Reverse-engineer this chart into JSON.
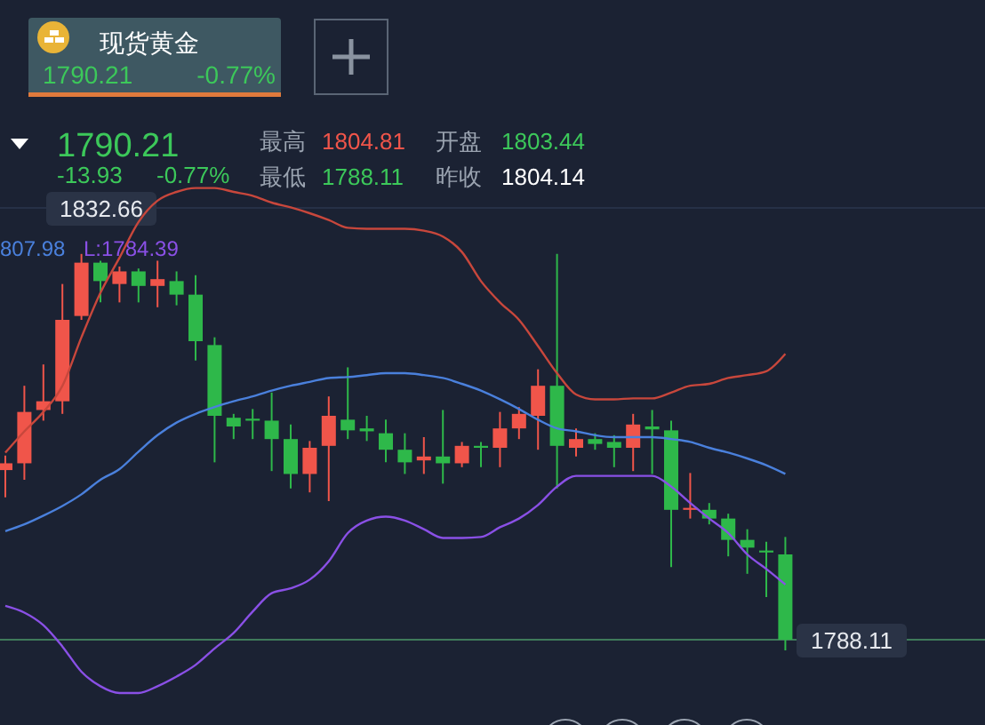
{
  "chart_data": {
    "type": "candlestick",
    "title": "现货黄金",
    "categories": [
      null,
      null,
      null,
      null,
      null,
      null,
      null,
      null,
      null,
      null,
      null,
      null,
      null,
      null,
      null,
      null,
      null,
      null,
      null,
      null,
      null,
      null,
      null,
      null,
      null,
      null,
      null,
      null,
      null,
      null,
      null,
      null,
      null,
      null,
      null,
      null,
      null,
      null,
      null,
      null,
      null,
      null
    ],
    "ohlc": [
      [
        1805.6,
        1807.1,
        1802.8,
        1806.3
      ],
      [
        1806.3,
        1814.3,
        1804.6,
        1811.6
      ],
      [
        1811.8,
        1816.5,
        1810.7,
        1812.7
      ],
      [
        1812.7,
        1824.8,
        1811.4,
        1821.1
      ],
      [
        1821.5,
        1827.9,
        1821.1,
        1827.0
      ],
      [
        1827.0,
        1827.2,
        1822.9,
        1825.1
      ],
      [
        1824.8,
        1826.6,
        1822.9,
        1826.1
      ],
      [
        1826.1,
        1826.4,
        1822.9,
        1824.6
      ],
      [
        1824.6,
        1827.2,
        1822.4,
        1825.3
      ],
      [
        1825.1,
        1826.1,
        1822.6,
        1823.7
      ],
      [
        1823.7,
        1825.7,
        1816.9,
        1818.9
      ],
      [
        1818.5,
        1819.3,
        1806.4,
        1811.2
      ],
      [
        1811.0,
        1811.4,
        1808.8,
        1810.1
      ],
      [
        1810.9,
        1811.9,
        1808.8,
        1810.7
      ],
      [
        1810.7,
        1813.6,
        1805.5,
        1808.8
      ],
      [
        1808.8,
        1810.3,
        1803.7,
        1805.2
      ],
      [
        1805.2,
        1808.6,
        1803.3,
        1807.9
      ],
      [
        1808.1,
        1813.2,
        1802.4,
        1811.2
      ],
      [
        1810.8,
        1816.2,
        1808.8,
        1809.7
      ],
      [
        1809.9,
        1811.2,
        1808.6,
        1809.6
      ],
      [
        1809.4,
        1810.8,
        1806.4,
        1807.7
      ],
      [
        1807.7,
        1809.4,
        1805.2,
        1806.4
      ],
      [
        1806.6,
        1809.0,
        1805.2,
        1807.0
      ],
      [
        1807.0,
        1811.8,
        1804.2,
        1806.3
      ],
      [
        1806.3,
        1808.5,
        1805.9,
        1808.1
      ],
      [
        1808.1,
        1808.5,
        1805.9,
        1807.9
      ],
      [
        1807.9,
        1811.6,
        1805.9,
        1809.9
      ],
      [
        1809.9,
        1812.1,
        1808.8,
        1811.4
      ],
      [
        1811.2,
        1816.0,
        1807.7,
        1814.3
      ],
      [
        1814.3,
        1827.9,
        1803.7,
        1808.1
      ],
      [
        1807.9,
        1809.9,
        1807.0,
        1808.8
      ],
      [
        1808.8,
        1809.4,
        1807.7,
        1808.3
      ],
      [
        1808.5,
        1809.2,
        1805.9,
        1807.9
      ],
      [
        1807.9,
        1811.4,
        1805.5,
        1810.3
      ],
      [
        1810.1,
        1811.8,
        1805.2,
        1809.8
      ],
      [
        1809.7,
        1810.7,
        1795.6,
        1801.5
      ],
      [
        1801.5,
        1805.3,
        1800.6,
        1801.7
      ],
      [
        1801.5,
        1802.2,
        1800.0,
        1800.6
      ],
      [
        1800.6,
        1801.1,
        1796.7,
        1798.4
      ],
      [
        1798.4,
        1799.5,
        1794.9,
        1797.6
      ],
      [
        1797.3,
        1798.2,
        1792.5,
        1797.1
      ],
      [
        1796.9,
        1798.7,
        1787.0,
        1788.1
      ]
    ],
    "colors": [
      "#f0554a",
      "#f0554a",
      "#f0554a",
      "#f0554a",
      "#f0554a",
      "#2eb84a",
      "#f0554a",
      "#2eb84a",
      "#f0554a",
      "#2eb84a",
      "#2eb84a",
      "#2eb84a",
      "#2eb84a",
      "#2eb84a",
      "#2eb84a",
      "#2eb84a",
      "#f0554a",
      "#f0554a",
      "#2eb84a",
      "#2eb84a",
      "#2eb84a",
      "#2eb84a",
      "#f0554a",
      "#2eb84a",
      "#f0554a",
      "#2eb84a",
      "#f0554a",
      "#f0554a",
      "#f0554a",
      "#2eb84a",
      "#f0554a",
      "#2eb84a",
      "#2eb84a",
      "#f0554a",
      "#2eb84a",
      "#2eb84a",
      "#f0554a",
      "#2eb84a",
      "#2eb84a",
      "#2eb84a",
      "#2eb84a",
      "#2eb84a"
    ],
    "series": [
      {
        "type": "line",
        "color": "#c8473c",
        "values": [
          1807.4,
          1809.6,
          1811.6,
          1814.3,
          1819.3,
          1823.9,
          1827.5,
          1831.2,
          1833.4,
          1834.3,
          1834.7,
          1834.7,
          1834.3,
          1833.9,
          1833.2,
          1832.7,
          1832.1,
          1831.4,
          1830.6,
          1830.5,
          1830.5,
          1830.5,
          1830.3,
          1829.7,
          1828.1,
          1825.1,
          1822.9,
          1821.1,
          1818.4,
          1815.6,
          1813.4,
          1812.9,
          1812.9,
          1813.0,
          1813.0,
          1813.6,
          1814.3,
          1814.5,
          1815.1,
          1815.4,
          1815.8,
          1817.6
        ]
      },
      {
        "type": "line",
        "color": "#4a80dc",
        "values": [
          1799.3,
          1800.0,
          1800.9,
          1801.9,
          1803.1,
          1804.6,
          1805.7,
          1807.5,
          1809.2,
          1810.5,
          1811.4,
          1812.1,
          1812.7,
          1813.2,
          1813.8,
          1814.3,
          1814.7,
          1815.1,
          1815.2,
          1815.4,
          1815.6,
          1815.6,
          1815.4,
          1815.1,
          1814.5,
          1813.8,
          1812.9,
          1811.9,
          1810.8,
          1809.9,
          1809.6,
          1809.2,
          1809.0,
          1809.0,
          1809.0,
          1808.8,
          1808.5,
          1807.9,
          1807.4,
          1806.8,
          1806.1,
          1805.2
        ]
      },
      {
        "type": "line",
        "color": "#8a50e6",
        "values": [
          1791.6,
          1790.9,
          1789.6,
          1787.4,
          1784.8,
          1783.3,
          1782.6,
          1782.6,
          1783.3,
          1784.3,
          1785.5,
          1787.2,
          1788.8,
          1791.0,
          1792.9,
          1793.4,
          1794.3,
          1796.2,
          1799.1,
          1800.4,
          1800.8,
          1800.4,
          1799.5,
          1798.6,
          1798.6,
          1798.7,
          1799.7,
          1800.6,
          1802.0,
          1803.9,
          1805.0,
          1805.0,
          1805.0,
          1805.0,
          1805.0,
          1803.9,
          1802.2,
          1800.6,
          1799.1,
          1796.9,
          1795.4,
          1793.8
        ]
      }
    ],
    "ylim": [
      1779.3,
      1854.1
    ],
    "ref_lines": [
      {
        "axis": "y",
        "value": 1832.66,
        "label": "1832.66",
        "color": "#263046"
      },
      {
        "axis": "y",
        "value": 1788.11,
        "label": "1788.11",
        "color": "#3f7a5a"
      }
    ],
    "annotations": [
      "1790.21",
      "-0.77%",
      "1790.21",
      "-13.93",
      "-0.77%",
      "最高",
      "1804.81",
      "开盘",
      "1803.44",
      "最低",
      "1788.11",
      "昨收",
      "1804.14",
      "807.98",
      "L:1784.39"
    ]
  }
}
